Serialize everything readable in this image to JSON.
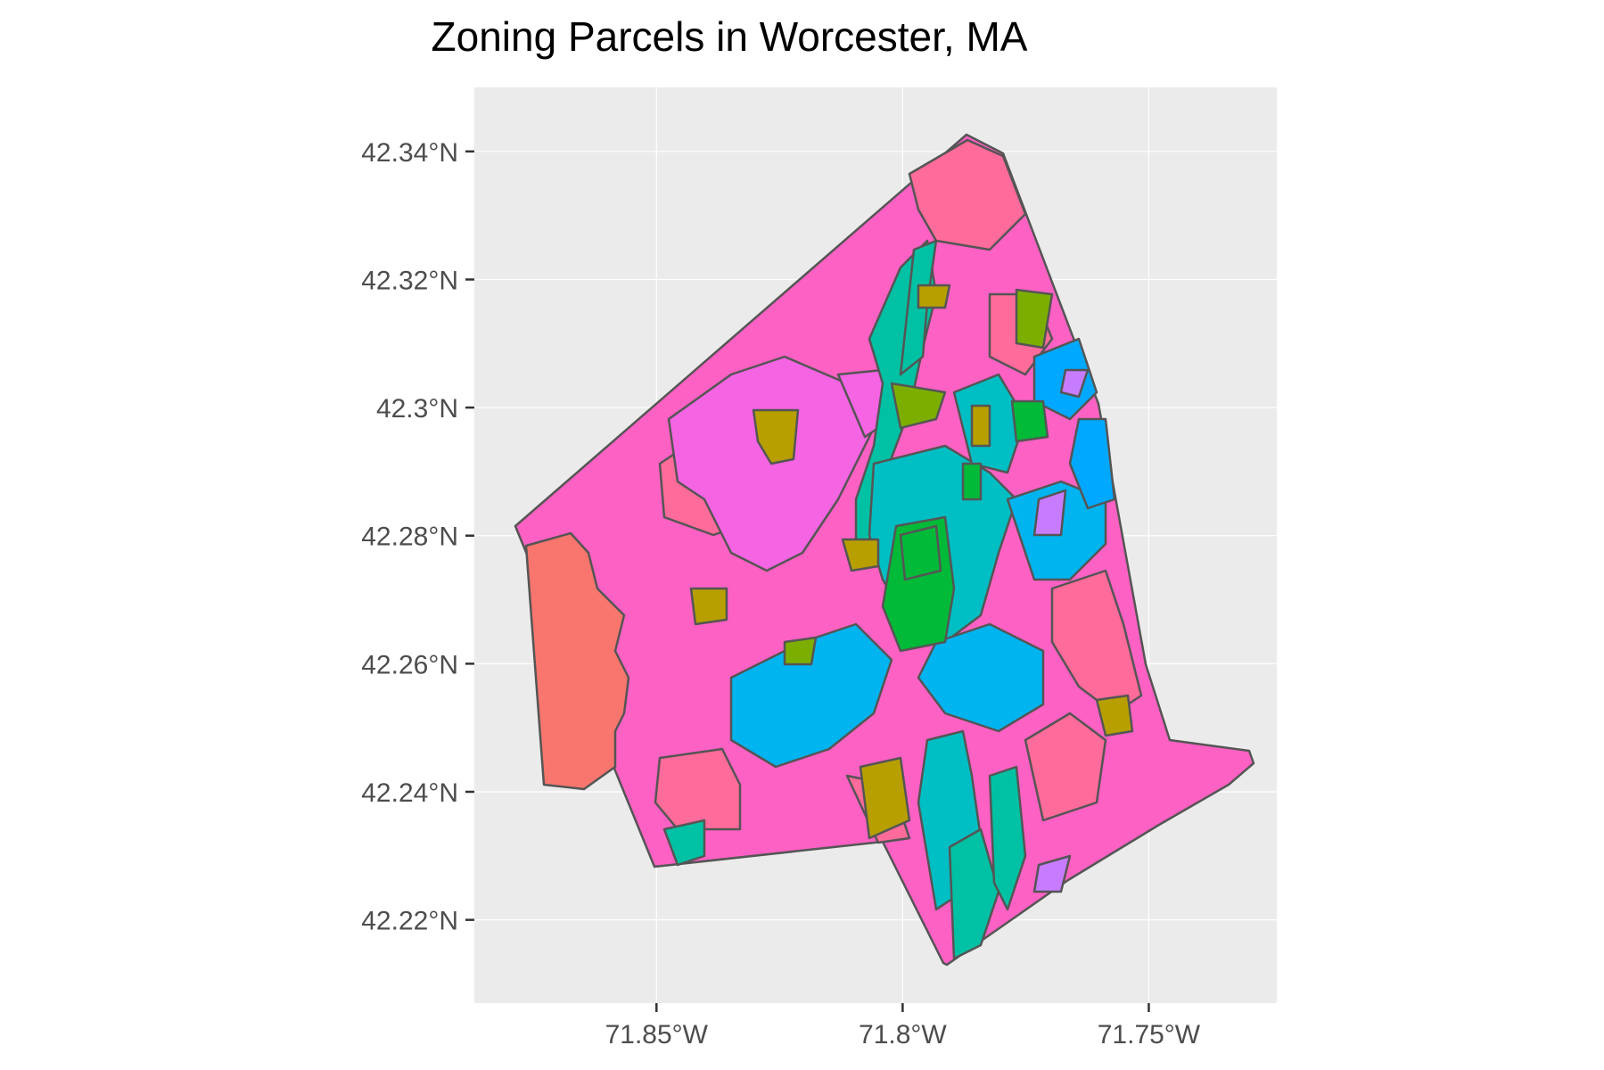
{
  "title": "Zoning Parcels in Worcester, MA",
  "chart_data": {
    "type": "map",
    "title": "Zoning Parcels in Worcester, MA",
    "xlim": [
      -71.887,
      -71.724
    ],
    "ylim": [
      42.207,
      42.35
    ],
    "x_ticks": [
      {
        "value": -71.85,
        "label": "71.85°W"
      },
      {
        "value": -71.8,
        "label": "71.8°W"
      },
      {
        "value": -71.75,
        "label": "71.75°W"
      }
    ],
    "y_ticks": [
      {
        "value": 42.22,
        "label": "42.22°N"
      },
      {
        "value": 42.24,
        "label": "42.24°N"
      },
      {
        "value": 42.26,
        "label": "42.26°N"
      },
      {
        "value": 42.28,
        "label": "42.28°N"
      },
      {
        "value": 42.3,
        "label": "42.3°N"
      },
      {
        "value": 42.32,
        "label": "42.32°N"
      },
      {
        "value": 42.34,
        "label": "42.34°N"
      }
    ],
    "grid": true,
    "legend": "none",
    "colors": {
      "panel_background": "#ebebeb",
      "grid": "#ffffff",
      "outline": "#555555",
      "residential_pink": "#fd61c3",
      "residential_magenta": "#f564e3",
      "residential_rose": "#ff6b9a",
      "salmon": "#f8766d",
      "cyan": "#00bfc4",
      "sky_blue": "#00b4f0",
      "blue": "#00a9ff",
      "teal": "#00c1a3",
      "green": "#00ba38",
      "olive": "#b79f00",
      "yellow_green": "#7cae00",
      "violet": "#c77cff"
    }
  }
}
